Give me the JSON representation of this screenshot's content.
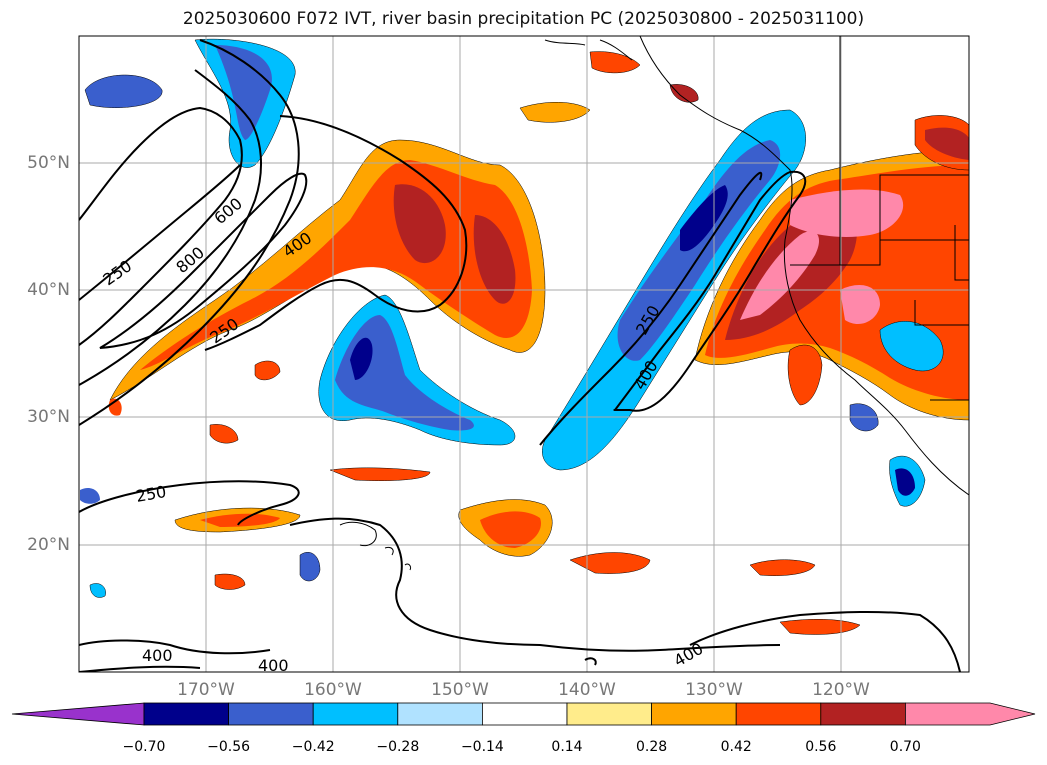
{
  "title": "2025030600 F072 IVT, river basin precipitation PC (2025030800 - 2025031100)",
  "lat_labels": [
    "50°N",
    "40°N",
    "30°N",
    "20°N"
  ],
  "lon_labels": [
    "170°W",
    "160°W",
    "150°W",
    "140°W",
    "130°W",
    "120°W"
  ],
  "contour_labels": [
    "250",
    "600",
    "800",
    "400",
    "250",
    "250",
    "400",
    "250",
    "400",
    "400",
    "400"
  ],
  "colorbar": {
    "ticks": [
      "−0.70",
      "−0.56",
      "−0.42",
      "−0.28",
      "−0.14",
      "0.14",
      "0.28",
      "0.42",
      "0.56",
      "0.70"
    ],
    "colors": [
      "#9932cc",
      "#00008b",
      "#3a5fcd",
      "#00bfff",
      "#b0e2ff",
      "#ffffff",
      "#ffec8b",
      "#ffa500",
      "#ff4500",
      "#b22222",
      "#ff88aa"
    ]
  },
  "colors": {
    "land_outline": "#000000",
    "grid": "#aaaaaa",
    "contour": "#000000"
  }
}
